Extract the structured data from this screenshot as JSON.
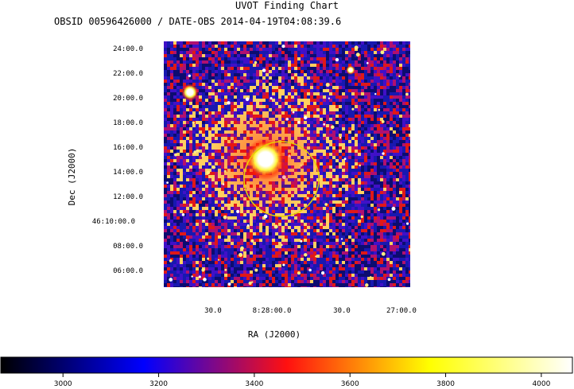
{
  "header": {
    "title": "UVOT Finding Chart",
    "subtitle": "OBSID 00596426000 / DATE-OBS 2014-04-19T04:08:39.6"
  },
  "chart_data": {
    "type": "heatmap",
    "title": "UVOT Finding Chart",
    "subtitle": "OBSID 00596426000 / DATE-OBS 2014-04-19T04:08:39.6",
    "xlabel": "RA (J2000)",
    "ylabel": "Dec (J2000)",
    "x_ticks": [
      "30.0",
      "8:28:00.0",
      "30.0",
      "27:00.0"
    ],
    "y_ticks": [
      "24:00.0",
      "22:00.0",
      "20:00.0",
      "18:00.0",
      "16:00.0",
      "14:00.0",
      "12:00.0",
      "46:10:00.0",
      "08:00.0",
      "06:00.0"
    ],
    "colorbar": {
      "ticks": [
        "3000",
        "3200",
        "3400",
        "3600",
        "3800",
        "4000"
      ],
      "range": [
        2870,
        4065
      ]
    },
    "circle_color": "#e6d200",
    "colormap": [
      "#000000",
      "#0000ff",
      "#ff0000",
      "#ffff00",
      "#ffffff"
    ]
  }
}
